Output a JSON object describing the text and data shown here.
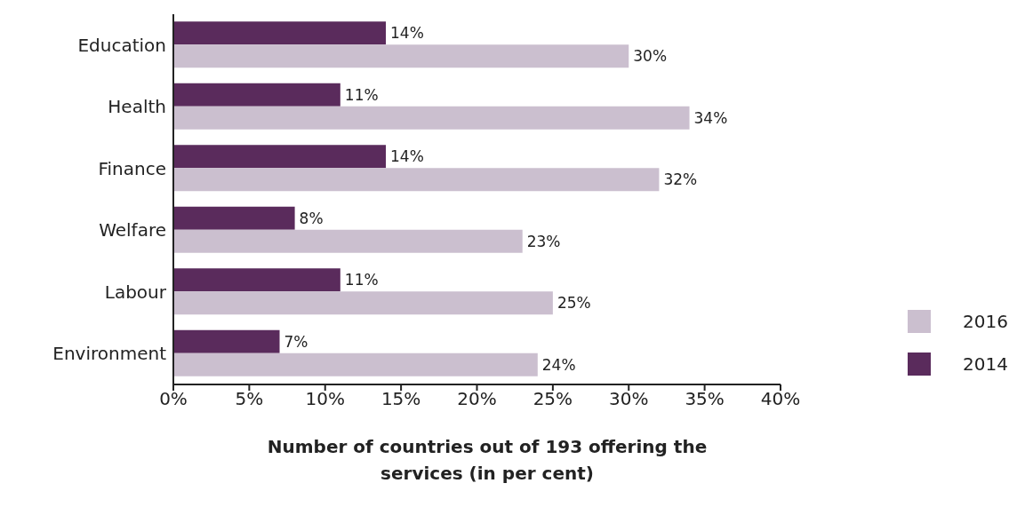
{
  "chart_data": {
    "type": "bar",
    "orientation": "horizontal",
    "categories": [
      "Education",
      "Health",
      "Finance",
      "Welfare",
      "Labour",
      "Environment"
    ],
    "series": [
      {
        "name": "2014",
        "color": "#5a2b5c",
        "values": [
          14,
          11,
          14,
          8,
          11,
          7
        ],
        "value_labels": [
          "14%",
          "11%",
          "14%",
          "8%",
          "11%",
          "7%"
        ]
      },
      {
        "name": "2016",
        "color": "#cbbfcf",
        "values": [
          30,
          34,
          32,
          23,
          25,
          24
        ],
        "value_labels": [
          "30%",
          "34%",
          "32%",
          "23%",
          "25%",
          "24%"
        ]
      }
    ],
    "xlim": [
      0,
      40
    ],
    "xticks": [
      {
        "value": 0,
        "label": "0%"
      },
      {
        "value": 5,
        "label": "5%"
      },
      {
        "value": 10,
        "label": "10%"
      },
      {
        "value": 15,
        "label": "15%"
      },
      {
        "value": 20,
        "label": "20%"
      },
      {
        "value": 25,
        "label": "25%"
      },
      {
        "value": 30,
        "label": "30%"
      },
      {
        "value": 35,
        "label": "35%"
      },
      {
        "value": 40,
        "label": "40%"
      }
    ],
    "xlabel": "Number of countries out of 193 offering the services (in per cent)",
    "grid": false,
    "legend": "bottom right"
  }
}
